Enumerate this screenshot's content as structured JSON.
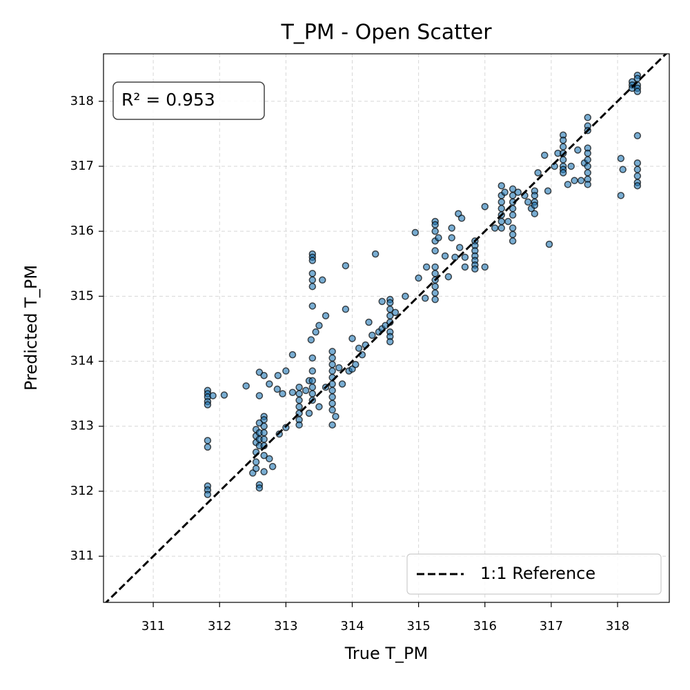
{
  "chart_data": {
    "type": "scatter",
    "title": "T_PM - Open Scatter",
    "x_label": "True T_PM",
    "y_label": "Predicted T_PM",
    "annotation": "R² = 0.953",
    "color": "#1f77b4",
    "grid": true,
    "legend": "lower right",
    "reference_line": {
      "name": "1:1 Reference",
      "color": "#000000",
      "slope": 1,
      "intercept": 0
    },
    "xlim": [
      310.25,
      318.78
    ],
    "ylim": [
      310.29,
      318.73
    ],
    "xticks": [
      311,
      312,
      313,
      314,
      315,
      316,
      317,
      318
    ],
    "yticks": [
      311,
      312,
      313,
      314,
      315,
      316,
      317,
      318
    ],
    "x": [
      311.82,
      311.82,
      311.82,
      311.82,
      311.82,
      311.82,
      311.82,
      311.82,
      311.82,
      311.82,
      311.9,
      312.07,
      312.4,
      312.5,
      312.55,
      312.55,
      312.55,
      312.55,
      312.55,
      312.55,
      312.6,
      312.6,
      312.6,
      312.6,
      312.6,
      312.6,
      312.6,
      312.6,
      312.67,
      312.67,
      312.67,
      312.67,
      312.67,
      312.67,
      312.67,
      312.67,
      312.67,
      312.75,
      312.8,
      312.75,
      312.88,
      312.87,
      312.9,
      312.95,
      313.0,
      313.0,
      313.1,
      313.1,
      313.2,
      313.2,
      313.2,
      313.2,
      313.2,
      313.2,
      313.2,
      313.3,
      313.35,
      313.35,
      313.38,
      313.4,
      313.4,
      313.4,
      313.4,
      313.4,
      313.4,
      313.4,
      313.4,
      313.4,
      313.4,
      313.4,
      313.4,
      313.4,
      313.45,
      313.5,
      313.5,
      313.55,
      313.6,
      313.6,
      313.7,
      313.7,
      313.7,
      313.7,
      313.7,
      313.7,
      313.7,
      313.7,
      313.7,
      313.7,
      313.7,
      313.75,
      313.8,
      313.85,
      313.9,
      313.9,
      313.95,
      314.0,
      314.0,
      314.05,
      314.1,
      314.15,
      314.2,
      314.25,
      314.3,
      314.35,
      314.4,
      314.45,
      314.45,
      314.5,
      314.57,
      314.57,
      314.57,
      314.57,
      314.57,
      314.57,
      314.57,
      314.57,
      314.65,
      314.8,
      314.95,
      315.0,
      315.1,
      315.12,
      315.25,
      315.25,
      315.25,
      315.25,
      315.25,
      315.25,
      315.25,
      315.25,
      315.25,
      315.25,
      315.25,
      315.3,
      315.4,
      315.45,
      315.5,
      315.5,
      315.55,
      315.6,
      315.62,
      315.65,
      315.7,
      315.7,
      315.85,
      315.85,
      315.85,
      315.85,
      315.85,
      315.85,
      315.85,
      316.0,
      316.0,
      316.15,
      316.25,
      316.25,
      316.25,
      316.25,
      316.25,
      316.25,
      316.25,
      316.3,
      316.35,
      316.42,
      316.42,
      316.42,
      316.42,
      316.42,
      316.42,
      316.42,
      316.42,
      316.5,
      316.6,
      316.65,
      316.7,
      316.75,
      316.75,
      316.75,
      316.75,
      316.75,
      316.8,
      316.9,
      316.95,
      316.97,
      317.05,
      317.1,
      317.18,
      317.18,
      317.18,
      317.18,
      317.18,
      317.18,
      317.18,
      317.18,
      317.25,
      317.3,
      317.35,
      317.4,
      317.45,
      317.5,
      317.55,
      317.55,
      317.55,
      317.55,
      317.55,
      317.55,
      317.55,
      317.55,
      317.55,
      317.55,
      318.05,
      318.05,
      318.08,
      318.22,
      318.22,
      318.22,
      318.3,
      318.3,
      318.3,
      318.3,
      318.3,
      318.3,
      318.3,
      318.3,
      318.3,
      318.3,
      318.3
    ],
    "values": [
      313.55,
      313.5,
      313.45,
      313.38,
      313.33,
      312.78,
      312.68,
      312.08,
      312.02,
      311.95,
      313.47,
      313.48,
      313.62,
      312.28,
      312.95,
      312.85,
      312.75,
      312.6,
      312.45,
      312.35,
      313.05,
      312.9,
      312.8,
      312.7,
      312.1,
      312.05,
      313.47,
      313.83,
      313.15,
      313.1,
      313.0,
      312.9,
      312.8,
      312.7,
      312.55,
      312.3,
      313.78,
      312.5,
      312.38,
      313.65,
      313.78,
      313.57,
      312.88,
      313.5,
      312.98,
      313.85,
      313.52,
      314.1,
      313.6,
      313.5,
      313.4,
      313.3,
      313.2,
      313.1,
      313.02,
      313.55,
      313.7,
      313.2,
      314.33,
      315.65,
      315.6,
      315.55,
      315.35,
      315.25,
      315.15,
      314.85,
      314.05,
      313.85,
      313.7,
      313.6,
      313.5,
      313.4,
      314.45,
      314.55,
      313.3,
      315.25,
      314.7,
      313.6,
      314.15,
      314.05,
      313.95,
      313.85,
      313.75,
      313.65,
      313.55,
      313.45,
      313.35,
      313.25,
      313.02,
      313.15,
      313.9,
      313.65,
      315.47,
      314.8,
      313.85,
      314.35,
      313.88,
      313.95,
      314.2,
      314.1,
      314.25,
      314.6,
      314.4,
      315.65,
      314.45,
      314.5,
      314.92,
      314.55,
      314.95,
      314.9,
      314.8,
      314.7,
      314.6,
      314.45,
      314.38,
      314.3,
      314.75,
      315.0,
      315.98,
      315.28,
      314.97,
      315.45,
      316.15,
      316.1,
      316.0,
      315.85,
      315.7,
      315.45,
      315.35,
      315.25,
      315.15,
      315.05,
      314.95,
      315.9,
      315.62,
      315.3,
      315.9,
      316.05,
      315.6,
      316.27,
      315.75,
      316.2,
      315.45,
      315.6,
      315.85,
      315.78,
      315.7,
      315.62,
      315.55,
      315.48,
      315.42,
      316.38,
      315.45,
      316.05,
      316.7,
      316.55,
      316.45,
      316.35,
      316.25,
      316.15,
      316.05,
      316.6,
      316.15,
      316.65,
      316.55,
      316.45,
      316.35,
      316.25,
      316.05,
      315.95,
      315.85,
      316.6,
      316.55,
      316.45,
      316.35,
      316.62,
      316.55,
      316.45,
      316.4,
      316.27,
      316.9,
      317.17,
      316.62,
      315.8,
      317.0,
      317.2,
      317.48,
      317.4,
      317.3,
      317.2,
      317.1,
      317.0,
      316.95,
      316.9,
      316.72,
      317.0,
      316.78,
      317.25,
      316.78,
      317.05,
      317.75,
      317.62,
      317.55,
      317.28,
      317.2,
      317.1,
      317.0,
      316.9,
      316.8,
      316.72,
      317.12,
      316.55,
      316.95,
      318.3,
      318.25,
      318.2,
      318.4,
      318.35,
      318.25,
      318.2,
      318.15,
      317.47,
      317.05,
      316.95,
      316.85,
      316.75,
      316.7
    ]
  }
}
